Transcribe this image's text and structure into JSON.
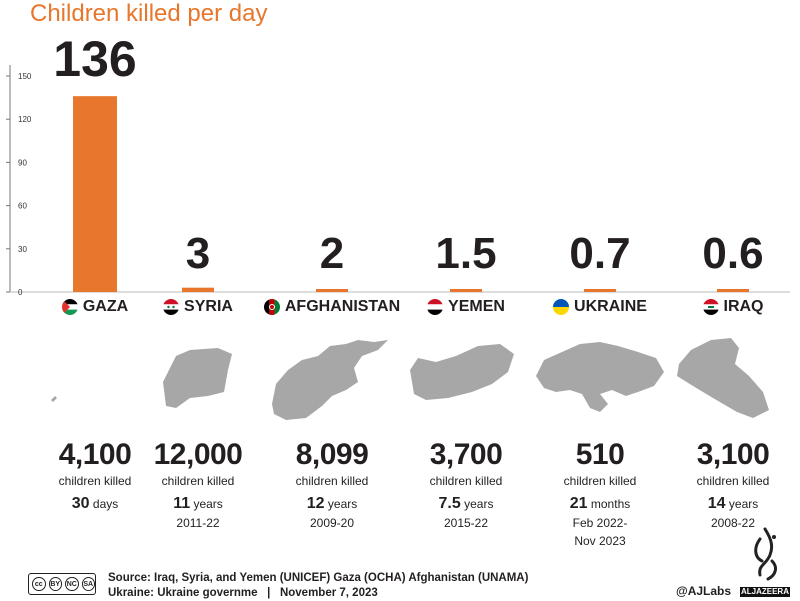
{
  "title": "Children killed per day",
  "chart_data": {
    "type": "bar",
    "title": "Children killed per day",
    "categories": [
      "GAZA",
      "SYRIA",
      "AFGHANISTAN",
      "YEMEN",
      "UKRAINE",
      "IRAQ"
    ],
    "values": [
      136,
      3,
      2,
      1.5,
      0.7,
      0.6
    ],
    "value_labels": [
      "136",
      "3",
      "2",
      "1.5",
      "0.7",
      "0.6"
    ],
    "ylim": [
      0,
      150
    ],
    "yticks": [
      0,
      30,
      60,
      90,
      120,
      150
    ],
    "bar_color": "#e8762c",
    "grid": false
  },
  "countries": [
    {
      "name": "GAZA",
      "flag": "palestine-flag-icon",
      "map": "",
      "total": "4,100",
      "killed_label": "children killed",
      "duration_num": "30",
      "duration_unit": "days",
      "range": ""
    },
    {
      "name": "SYRIA",
      "flag": "syria-flag-icon",
      "map": "syria-map",
      "total": "12,000",
      "killed_label": "children killed",
      "duration_num": "11",
      "duration_unit": "years",
      "range": "2011-22"
    },
    {
      "name": "AFGHANISTAN",
      "flag": "afghanistan-flag-icon",
      "map": "afghanistan-map",
      "total": "8,099",
      "killed_label": "children killed",
      "duration_num": "12",
      "duration_unit": "years",
      "range": "2009-20"
    },
    {
      "name": "YEMEN",
      "flag": "yemen-flag-icon",
      "map": "yemen-map",
      "total": "3,700",
      "killed_label": "children killed",
      "duration_num": "7.5",
      "duration_unit": "years",
      "range": "2015-22"
    },
    {
      "name": "UKRAINE",
      "flag": "ukraine-flag-icon",
      "map": "ukraine-map",
      "total": "510",
      "killed_label": "children killed",
      "duration_num": "21",
      "duration_unit": "months",
      "range": "Feb 2022-\nNov 2023"
    },
    {
      "name": "IRAQ",
      "flag": "iraq-flag-icon",
      "map": "iraq-map",
      "total": "3,100",
      "killed_label": "children killed",
      "duration_num": "14",
      "duration_unit": "years",
      "range": "2008-22"
    }
  ],
  "footer": {
    "source_line1": "Source: Iraq, Syria, and Yemen (UNICEF) Gaza (OCHA) Afghanistan (UNAMA)",
    "source_line2": "Ukraine: Ukraine governme   |   November 7, 2023",
    "handle": "@AJLabs",
    "logo_word": "ALJAZEERA",
    "license_badges": [
      "cc",
      "BY",
      "NC",
      "SA"
    ]
  },
  "colors": {
    "accent": "#e8762c",
    "text": "#231f20",
    "map_fill": "#a7a7a7"
  }
}
